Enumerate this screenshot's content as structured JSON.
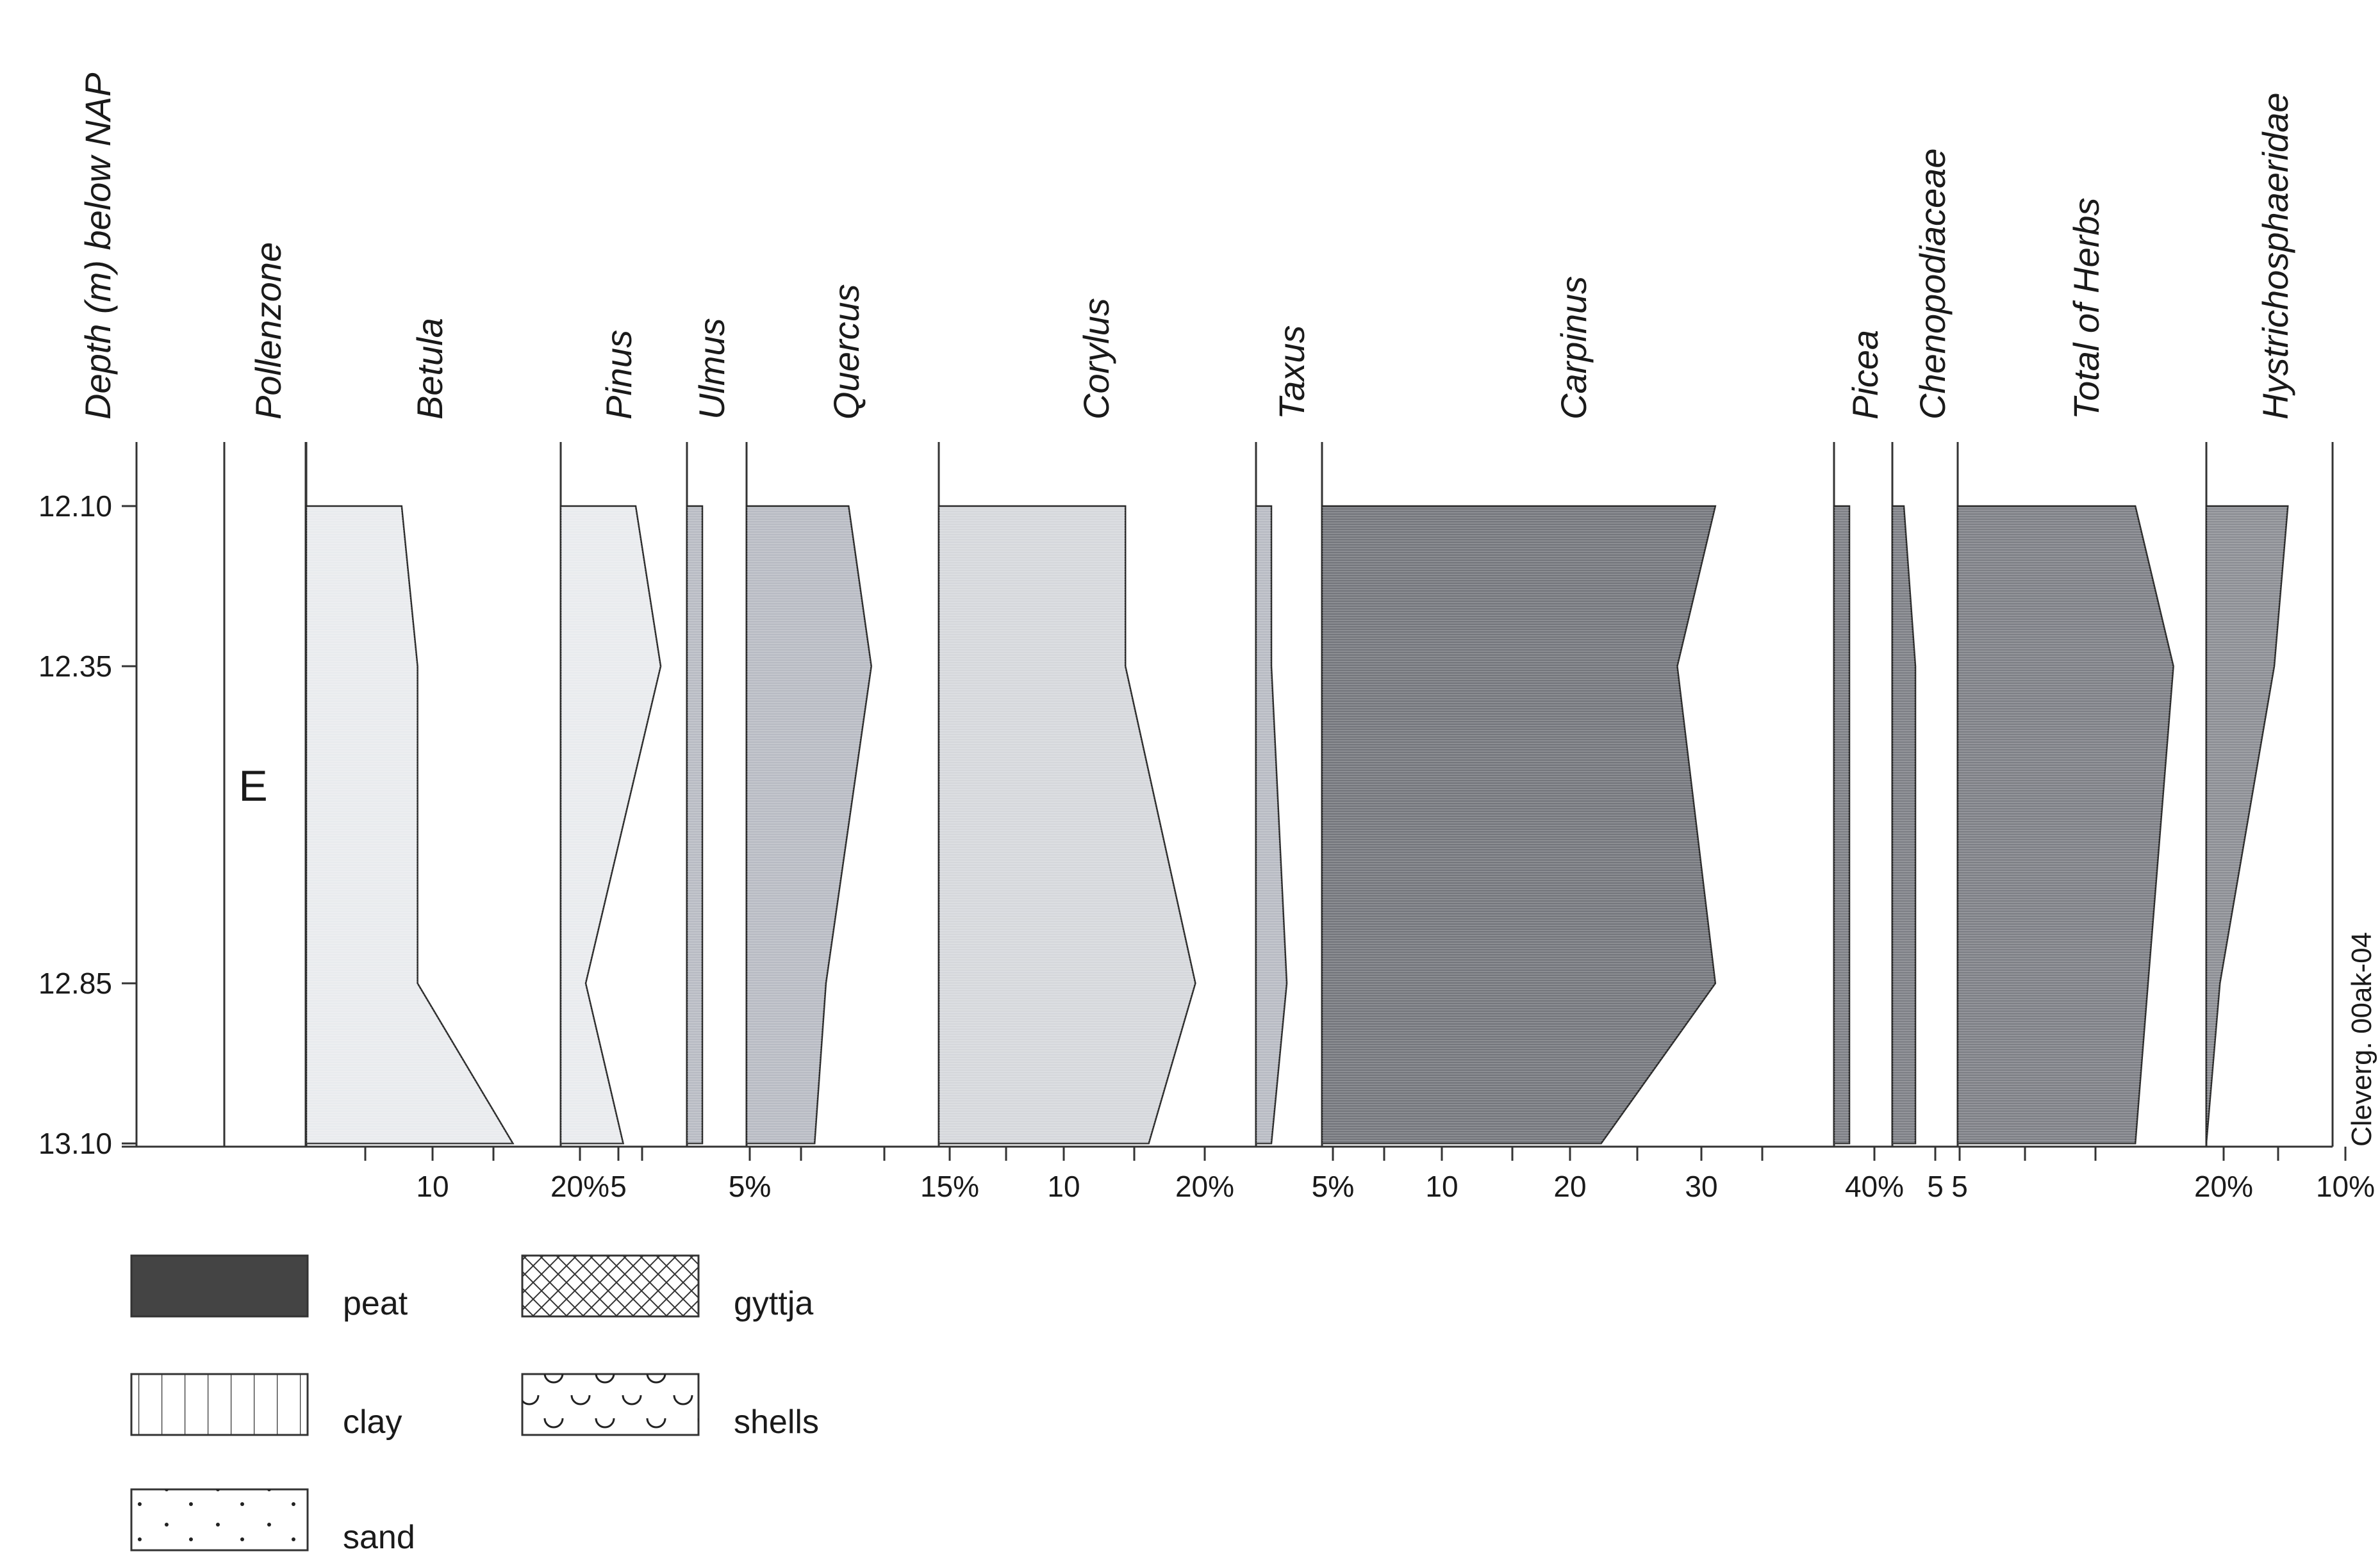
{
  "chart_data": {
    "type": "area",
    "y_axis_label": "Depth (m) below NAP",
    "y_ticks": [
      "12.10",
      "12.35",
      "12.85",
      "13.10"
    ],
    "depth": [
      12.1,
      12.35,
      12.85,
      13.1
    ],
    "zone_column_label": "Pollenzone",
    "zone": "E",
    "side_label": "Cleverg. 00ak-04",
    "taxa": [
      {
        "name": "Betula",
        "values": [
          6,
          7,
          7,
          13
        ],
        "fill": "#e9ebee",
        "scale_labels": [
          "10",
          "20%"
        ]
      },
      {
        "name": "Pinus",
        "values": [
          6,
          8,
          2,
          5
        ],
        "fill": "#e9ebee",
        "scale_labels": [
          "5"
        ]
      },
      {
        "name": "Ulmus",
        "values": [
          1,
          1,
          1,
          1
        ],
        "fill": "#b9bcc4",
        "scale_labels": [
          "5%"
        ]
      },
      {
        "name": "Quercus",
        "values": [
          9,
          11,
          7,
          6
        ],
        "fill": "#b9bcc4",
        "scale_labels": [
          "5%"
        ]
      },
      {
        "name": "Corylus",
        "values": [
          16,
          16,
          22,
          18
        ],
        "fill": "#d6d8dc",
        "scale_labels": [
          "15%",
          "10",
          "20%"
        ]
      },
      {
        "name": "Taxus",
        "values": [
          1,
          1,
          2,
          1
        ],
        "fill": "#b9bcc4",
        "scale_labels": [
          "5%"
        ]
      },
      {
        "name": "Carpinus",
        "values": [
          31,
          28,
          31,
          22
        ],
        "fill": "#77797f",
        "scale_labels": [
          "5%",
          "10",
          "20",
          "30"
        ]
      },
      {
        "name": "Picea",
        "values": [
          1,
          1,
          1,
          1
        ],
        "fill": "#808288",
        "scale_labels": [
          "40%"
        ]
      },
      {
        "name": "Chenopodiaceae",
        "values": [
          1,
          2,
          2,
          2
        ],
        "fill": "#808288",
        "scale_labels": [
          "5"
        ]
      },
      {
        "name": "Total of Herbs",
        "values": [
          14,
          17,
          15,
          14
        ],
        "fill": "#808288",
        "scale_labels": [
          "5",
          "20%"
        ]
      },
      {
        "name": "Hystrichosphaeridae",
        "values": [
          6,
          5,
          1,
          0
        ],
        "fill": "#8e9096",
        "scale_labels": [
          "10%"
        ]
      }
    ],
    "legend": [
      {
        "label": "peat",
        "pattern": "solid"
      },
      {
        "label": "gyttja",
        "pattern": "crosshatch"
      },
      {
        "label": "clay",
        "pattern": "vertical-lines"
      },
      {
        "label": "shells",
        "pattern": "shells"
      },
      {
        "label": "sand",
        "pattern": "dots"
      }
    ]
  }
}
